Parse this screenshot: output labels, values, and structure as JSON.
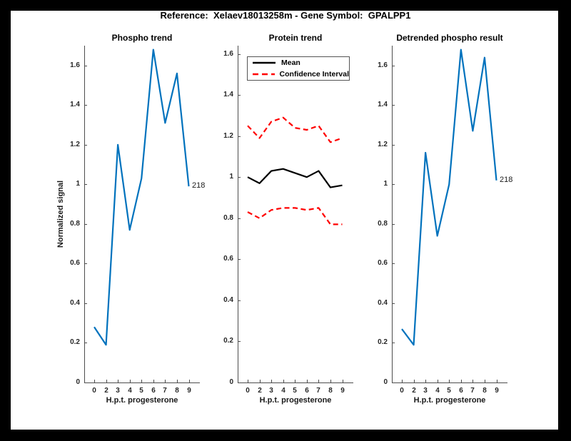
{
  "figure": {
    "title": "Reference:  Xelaev18013258m - Gene Symbol:  GPALPP1",
    "background_color": "#ffffff",
    "frame_color": "#000000"
  },
  "axes": {
    "x_label": "H.p.t. progesterone",
    "x_tick_labels": [
      "0",
      "2",
      "3",
      "4",
      "5",
      "6",
      "7",
      "8",
      "9"
    ],
    "y_tick_labels": [
      "0",
      "0.2",
      "0.4",
      "0.6",
      "0.8",
      "1",
      "1.2",
      "1.4",
      "1.6"
    ],
    "y_tick_values": [
      0,
      0.2,
      0.4,
      0.6,
      0.8,
      1.0,
      1.2,
      1.4,
      1.6
    ],
    "grid": "off"
  },
  "colors": {
    "line_blue": "#0072BD",
    "ci_red": "#FF0000",
    "mean_black": "#000000",
    "axis_gray": "#4d4d4d"
  },
  "chart_data": [
    {
      "type": "line",
      "title": "Phospho trend",
      "xlabel": "H.p.t. progesterone",
      "ylabel": "Normalized signal",
      "ylim": [
        0,
        1.7
      ],
      "x_categories": [
        "0",
        "2",
        "3",
        "4",
        "5",
        "6",
        "7",
        "8",
        "9"
      ],
      "series": [
        {
          "name": "Phospho trend",
          "color": "#0072BD",
          "dash": "solid",
          "values": [
            0.28,
            0.19,
            1.2,
            0.77,
            1.03,
            1.68,
            1.31,
            1.56,
            0.99
          ]
        }
      ],
      "annotation": {
        "text": "218",
        "at_x": "9",
        "at_y": 0.99
      }
    },
    {
      "type": "line",
      "title": "Protein trend",
      "xlabel": "H.p.t. progesterone",
      "ylim": [
        0,
        1.64
      ],
      "x_categories": [
        "0",
        "2",
        "3",
        "4",
        "5",
        "6",
        "7",
        "8",
        "9"
      ],
      "series": [
        {
          "name": "Mean",
          "color": "#000000",
          "dash": "solid",
          "values": [
            1.0,
            0.97,
            1.03,
            1.04,
            1.02,
            1.0,
            1.03,
            0.95,
            0.96
          ]
        },
        {
          "name": "Confidence Interval upper",
          "color": "#FF0000",
          "dash": "dashed",
          "values": [
            1.25,
            1.19,
            1.27,
            1.29,
            1.24,
            1.23,
            1.25,
            1.17,
            1.19
          ]
        },
        {
          "name": "Confidence Interval lower",
          "color": "#FF0000",
          "dash": "dashed",
          "values": [
            0.83,
            0.8,
            0.84,
            0.85,
            0.85,
            0.84,
            0.85,
            0.77,
            0.77
          ]
        }
      ],
      "legend": {
        "position": "top-left",
        "entries": [
          {
            "label": "Mean",
            "color": "#000000",
            "dash": "solid"
          },
          {
            "label": "Confidence Interval",
            "color": "#FF0000",
            "dash": "dashed"
          }
        ]
      }
    },
    {
      "type": "line",
      "title": "Detrended phospho result",
      "xlabel": "H.p.t. progesterone",
      "ylim": [
        0,
        1.7
      ],
      "x_categories": [
        "0",
        "2",
        "3",
        "4",
        "5",
        "6",
        "7",
        "8",
        "9"
      ],
      "series": [
        {
          "name": "Detrended phospho",
          "color": "#0072BD",
          "dash": "solid",
          "values": [
            0.27,
            0.19,
            1.16,
            0.74,
            1.0,
            1.68,
            1.27,
            1.64,
            1.02
          ]
        }
      ],
      "annotation": {
        "text": "218",
        "at_x": "9",
        "at_y": 1.02
      }
    }
  ]
}
